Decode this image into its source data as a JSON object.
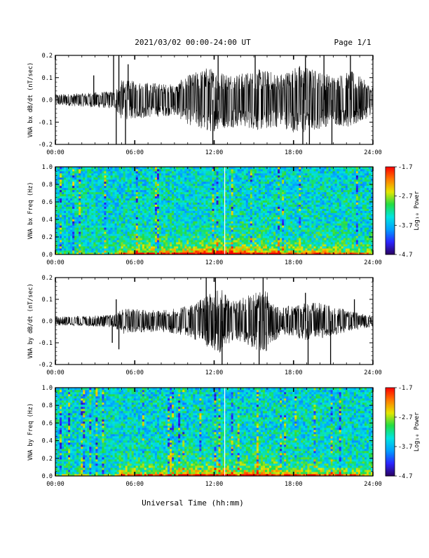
{
  "header": {
    "title": "2021/03/02  00:00-24:00 UT",
    "page": "Page 1/1"
  },
  "footer": {
    "xlabel": "Universal Time (hh:mm)"
  },
  "colors": {
    "background": "#ffffff",
    "trace": "#000000",
    "colormap": [
      "#2a0060",
      "#2b25ff",
      "#00a0ff",
      "#00e5e0",
      "#22dd44",
      "#e6e600",
      "#ff7a00",
      "#ff0000"
    ]
  },
  "chart_data": [
    {
      "type": "line",
      "panel": "bx-waveform",
      "ylabel": "VNA bx dB/dt (nT/sec)",
      "xlim": [
        0,
        24
      ],
      "ylim": [
        -0.2,
        0.2
      ],
      "x_ticks": [
        "00:00",
        "06:00",
        "12:00",
        "18:00",
        "24:00"
      ],
      "y_ticks": [
        "0.2",
        "0.1",
        "0.0",
        "-0.1",
        "-0.2"
      ],
      "y_tick_values": [
        0.2,
        0.1,
        0.0,
        -0.1,
        -0.2
      ],
      "grid": false,
      "envelope": [
        {
          "x": 0,
          "y": 0.025
        },
        {
          "x": 2,
          "y": 0.03
        },
        {
          "x": 3,
          "y": 0.035
        },
        {
          "x": 4.5,
          "y": 0.04
        },
        {
          "x": 5,
          "y": 0.09
        },
        {
          "x": 7,
          "y": 0.08
        },
        {
          "x": 9,
          "y": 0.07
        },
        {
          "x": 10,
          "y": 0.11
        },
        {
          "x": 11.5,
          "y": 0.15
        },
        {
          "x": 12.5,
          "y": 0.13
        },
        {
          "x": 14,
          "y": 0.12
        },
        {
          "x": 15.5,
          "y": 0.14
        },
        {
          "x": 17,
          "y": 0.12
        },
        {
          "x": 18.5,
          "y": 0.16
        },
        {
          "x": 19.5,
          "y": 0.14
        },
        {
          "x": 21,
          "y": 0.11
        },
        {
          "x": 22.5,
          "y": 0.13
        },
        {
          "x": 24,
          "y": 0.06
        }
      ],
      "spikes": [
        {
          "x": 2.9,
          "y": 0.11
        },
        {
          "x": 4.4,
          "y": 0.2
        },
        {
          "x": 4.6,
          "y": -0.2
        },
        {
          "x": 4.8,
          "y": 0.2
        },
        {
          "x": 5.3,
          "y": -0.2
        },
        {
          "x": 5.5,
          "y": 0.16
        },
        {
          "x": 11.9,
          "y": -0.2
        },
        {
          "x": 12.3,
          "y": 0.2
        },
        {
          "x": 15.1,
          "y": 0.2
        },
        {
          "x": 18.7,
          "y": -0.2
        },
        {
          "x": 18.9,
          "y": 0.2
        },
        {
          "x": 19.2,
          "y": -0.2
        },
        {
          "x": 20.3,
          "y": 0.2
        },
        {
          "x": 20.9,
          "y": -0.2
        },
        {
          "x": 22.3,
          "y": 0.2
        }
      ]
    },
    {
      "type": "heatmap",
      "panel": "bx-spectrogram",
      "ylabel": "VNA bx Freq (Hz)",
      "xlim": [
        0,
        24
      ],
      "ylim": [
        0,
        1.0
      ],
      "x_ticks": [
        "00:00",
        "06:00",
        "12:00",
        "18:00",
        "24:00"
      ],
      "y_ticks": [
        "1.0",
        "0.8",
        "0.6",
        "0.4",
        "0.2",
        "0.0"
      ],
      "y_tick_values": [
        1.0,
        0.8,
        0.6,
        0.4,
        0.2,
        0.0
      ],
      "colorbar": {
        "label": "Log₁₀ Power",
        "range": [
          -4.7,
          -1.7
        ],
        "ticks": [
          "-1.7",
          "-2.7",
          "-3.7",
          "-4.7"
        ],
        "tick_values": [
          -1.7,
          -2.7,
          -3.7,
          -4.7
        ]
      },
      "activity": [
        {
          "x": 0,
          "v": 0.05
        },
        {
          "x": 4.4,
          "v": 0.1
        },
        {
          "x": 5,
          "v": 0.45
        },
        {
          "x": 7,
          "v": 0.6
        },
        {
          "x": 9,
          "v": 0.55
        },
        {
          "x": 11,
          "v": 0.75
        },
        {
          "x": 13,
          "v": 0.8
        },
        {
          "x": 15,
          "v": 0.7
        },
        {
          "x": 16.5,
          "v": 0.65
        },
        {
          "x": 18,
          "v": 0.5
        },
        {
          "x": 20,
          "v": 0.55
        },
        {
          "x": 22,
          "v": 0.45
        },
        {
          "x": 24,
          "v": 0.35
        }
      ],
      "data_gaps_x": [
        12.8
      ]
    },
    {
      "type": "line",
      "panel": "by-waveform",
      "ylabel": "VNA by dB/dt (nT/sec)",
      "xlim": [
        0,
        24
      ],
      "ylim": [
        -0.2,
        0.2
      ],
      "x_ticks": [
        "00:00",
        "06:00",
        "12:00",
        "18:00",
        "24:00"
      ],
      "y_ticks": [
        "0.2",
        "0.1",
        "0.0",
        "-0.1",
        "-0.2"
      ],
      "y_tick_values": [
        0.2,
        0.1,
        0.0,
        -0.1,
        -0.2
      ],
      "grid": false,
      "envelope": [
        {
          "x": 0,
          "y": 0.02
        },
        {
          "x": 3,
          "y": 0.025
        },
        {
          "x": 4.5,
          "y": 0.03
        },
        {
          "x": 5,
          "y": 0.06
        },
        {
          "x": 8,
          "y": 0.05
        },
        {
          "x": 10,
          "y": 0.07
        },
        {
          "x": 11.5,
          "y": 0.12
        },
        {
          "x": 12.5,
          "y": 0.15
        },
        {
          "x": 13.5,
          "y": 0.09
        },
        {
          "x": 15,
          "y": 0.13
        },
        {
          "x": 16,
          "y": 0.14
        },
        {
          "x": 17,
          "y": 0.06
        },
        {
          "x": 19,
          "y": 0.09
        },
        {
          "x": 20.5,
          "y": 0.08
        },
        {
          "x": 22,
          "y": 0.05
        },
        {
          "x": 24,
          "y": 0.025
        }
      ],
      "spikes": [
        {
          "x": 4.3,
          "y": -0.1
        },
        {
          "x": 4.6,
          "y": 0.1
        },
        {
          "x": 4.8,
          "y": -0.13
        },
        {
          "x": 11.4,
          "y": 0.2
        },
        {
          "x": 12.1,
          "y": 0.2
        },
        {
          "x": 12.6,
          "y": -0.2
        },
        {
          "x": 15.4,
          "y": -0.2
        },
        {
          "x": 15.7,
          "y": 0.2
        },
        {
          "x": 18.9,
          "y": 0.13
        },
        {
          "x": 19.1,
          "y": -0.2
        },
        {
          "x": 20.8,
          "y": -0.2
        },
        {
          "x": 22.6,
          "y": 0.1
        }
      ]
    },
    {
      "type": "heatmap",
      "panel": "by-spectrogram",
      "ylabel": "VNA by Freq (Hz)",
      "xlim": [
        0,
        24
      ],
      "ylim": [
        0,
        1.0
      ],
      "x_ticks": [
        "00:00",
        "06:00",
        "12:00",
        "18:00",
        "24:00"
      ],
      "y_ticks": [
        "1.0",
        "0.8",
        "0.6",
        "0.4",
        "0.2",
        "0.0"
      ],
      "y_tick_values": [
        1.0,
        0.8,
        0.6,
        0.4,
        0.2,
        0.0
      ],
      "colorbar": {
        "label": "Log₁₀ Power",
        "range": [
          -4.7,
          -1.7
        ],
        "ticks": [
          "-1.7",
          "-2.7",
          "-3.7",
          "-4.7"
        ],
        "tick_values": [
          -1.7,
          -2.7,
          -3.7,
          -4.7
        ]
      },
      "activity": [
        {
          "x": 0,
          "v": 0.05
        },
        {
          "x": 4.4,
          "v": 0.1
        },
        {
          "x": 5,
          "v": 0.45
        },
        {
          "x": 7,
          "v": 0.5
        },
        {
          "x": 9,
          "v": 0.5
        },
        {
          "x": 11,
          "v": 0.7
        },
        {
          "x": 13,
          "v": 0.75
        },
        {
          "x": 15,
          "v": 0.7
        },
        {
          "x": 16,
          "v": 0.75
        },
        {
          "x": 18,
          "v": 0.5
        },
        {
          "x": 20,
          "v": 0.5
        },
        {
          "x": 22,
          "v": 0.4
        },
        {
          "x": 24,
          "v": 0.3
        }
      ],
      "data_gaps_x": [
        12.8
      ]
    }
  ]
}
